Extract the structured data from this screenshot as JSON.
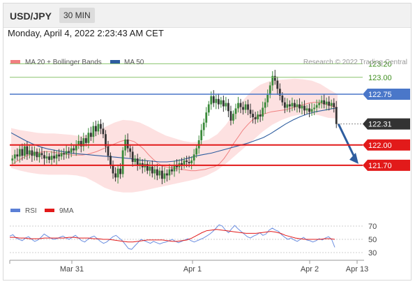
{
  "header": {
    "symbol": "USD/JPY",
    "period": "30 MIN"
  },
  "timestamp": "Monday, April 4, 2022 2:23:43 AM CET",
  "legend": {
    "ma20": "MA 20 + Bollinger Bands",
    "ma50": "MA 50",
    "credit": "Research © 2022 Trading Central"
  },
  "rsi_legend": {
    "rsi": "RSI",
    "ma9": "9MA"
  },
  "colors": {
    "ma20": "#f08080",
    "ma50": "#2e5d9f",
    "band": "#fddcdc",
    "resistance": "#8ac46d",
    "pivot": "#4a77c9",
    "support": "#e21a1a",
    "arrow": "#2e5d9f",
    "candle_up": "#3a8a3a",
    "candle_down": "#333333",
    "current": "#333333"
  },
  "chart_data": [
    {
      "type": "candlestick",
      "ylim": [
        121.35,
        123.25
      ],
      "x_ticks": [
        "Mar 31",
        "Apr 1",
        "Apr 2",
        "Apr 13"
      ],
      "levels": [
        {
          "label": "123.20",
          "value": 123.2,
          "kind": "resistance"
        },
        {
          "label": "123.00",
          "value": 123.0,
          "kind": "resistance"
        },
        {
          "label": "122.75",
          "value": 122.75,
          "kind": "pivot"
        },
        {
          "label": "122.31",
          "value": 122.31,
          "kind": "current"
        },
        {
          "label": "122.00",
          "value": 122.0,
          "kind": "support"
        },
        {
          "label": "121.70",
          "value": 121.7,
          "kind": "support"
        }
      ],
      "close": [
        121.8,
        121.86,
        121.83,
        121.94,
        121.84,
        121.98,
        121.86,
        121.92,
        121.84,
        121.9,
        121.82,
        121.88,
        121.85,
        121.8,
        121.83,
        121.78,
        121.84,
        121.8,
        121.86,
        121.83,
        121.88,
        121.86,
        121.91,
        121.89,
        121.95,
        121.92,
        122.0,
        122.06,
        121.98,
        122.1,
        122.03,
        122.18,
        122.12,
        122.28,
        122.2,
        122.31,
        122.24,
        122.16,
        121.98,
        121.84,
        121.7,
        121.58,
        121.52,
        121.65,
        121.57,
        121.92,
        122.08,
        121.95,
        121.9,
        121.75,
        121.8,
        121.7,
        121.73,
        121.67,
        121.72,
        121.62,
        121.68,
        121.58,
        121.64,
        121.55,
        121.62,
        121.5,
        121.58,
        121.55,
        121.64,
        121.61,
        121.7,
        121.67,
        121.73,
        121.7,
        121.77,
        121.75,
        121.73,
        121.77,
        121.86,
        121.95,
        122.07,
        122.22,
        122.33,
        122.48,
        122.6,
        122.72,
        122.62,
        122.68,
        122.6,
        122.66,
        122.57,
        122.62,
        122.5,
        122.36,
        122.46,
        122.54,
        122.62,
        122.56,
        122.52,
        122.6,
        122.52,
        122.46,
        122.41,
        122.38,
        122.45,
        122.42,
        122.55,
        122.63,
        122.74,
        122.88,
        123.02,
        122.95,
        122.83,
        122.73,
        122.63,
        122.55,
        122.6,
        122.57,
        122.62,
        122.56,
        122.6,
        122.54,
        122.58,
        122.51,
        122.54,
        122.49,
        122.53,
        122.55,
        122.59,
        122.62,
        122.66,
        122.6,
        122.64,
        122.58,
        122.62,
        122.56,
        122.31
      ],
      "ma20": [
        121.7,
        121.75,
        121.79,
        121.83,
        121.86,
        121.88,
        121.89,
        121.9,
        121.9,
        121.89,
        121.88,
        121.87,
        121.86,
        121.85,
        121.85,
        121.85,
        121.86,
        121.88,
        121.9,
        121.93,
        121.96,
        121.99,
        122.02,
        122.05,
        122.07,
        122.07,
        122.05,
        122.0,
        121.94,
        121.86,
        121.79,
        121.73,
        121.69,
        121.67,
        121.66,
        121.65,
        121.64,
        121.63,
        121.62,
        121.62,
        121.63,
        121.64,
        121.66,
        121.68,
        121.72,
        121.8,
        121.9,
        122.02,
        122.12,
        122.22,
        122.3,
        122.37,
        122.42,
        122.45,
        122.47,
        122.49,
        122.5,
        122.51,
        122.52,
        122.54,
        122.56,
        122.58,
        122.6,
        122.62,
        122.63,
        122.63,
        122.61,
        122.59,
        122.57,
        122.55
      ],
      "ma50": [
        122.18,
        122.12,
        122.06,
        122.01,
        121.97,
        121.94,
        121.92,
        121.9,
        121.88,
        121.87,
        121.86,
        121.85,
        121.84,
        121.83,
        121.82,
        121.81,
        121.8,
        121.78,
        121.77,
        121.76,
        121.75,
        121.75,
        121.76,
        121.78,
        121.81,
        121.84,
        121.86,
        121.88,
        121.91,
        121.94,
        121.97,
        122.0,
        122.03,
        122.07,
        122.11,
        122.17,
        122.24,
        122.31,
        122.37,
        122.42,
        122.46,
        122.49,
        122.51,
        122.53,
        122.55
      ],
      "band_upper": [
        122.25,
        122.22,
        122.2,
        122.18,
        122.17,
        122.17,
        122.16,
        122.15,
        122.13,
        122.15,
        122.2,
        122.27,
        122.33,
        122.37,
        122.36,
        122.33,
        122.27,
        122.2,
        122.14,
        122.1,
        122.06,
        122.04,
        122.05,
        122.08,
        122.16,
        122.3,
        122.48,
        122.66,
        122.8,
        122.89,
        122.94,
        122.96,
        122.97,
        122.98,
        122.97,
        122.95,
        122.9,
        122.82,
        122.75
      ],
      "band_lower": [
        121.66,
        121.62,
        121.59,
        121.57,
        121.56,
        121.56,
        121.56,
        121.55,
        121.52,
        121.45,
        121.37,
        121.32,
        121.3,
        121.3,
        121.32,
        121.35,
        121.38,
        121.41,
        121.44,
        121.47,
        121.5,
        121.55,
        121.62,
        121.72,
        121.84,
        121.96,
        122.08,
        122.2,
        122.3,
        122.37,
        122.42,
        122.45,
        122.46,
        122.44,
        122.4,
        122.39
      ]
    },
    {
      "type": "line",
      "ylim": [
        24,
        80
      ],
      "y_ticks": [
        "70",
        "50",
        "30"
      ],
      "rsi": [
        55,
        57,
        52,
        50,
        48,
        52,
        54,
        50,
        47,
        49,
        53,
        58,
        55,
        52,
        50,
        51,
        53,
        55,
        52,
        50,
        53,
        56,
        52,
        48,
        46,
        50,
        53,
        55,
        51,
        47,
        44,
        46,
        50,
        54,
        56,
        52,
        48,
        42,
        36,
        35,
        40,
        45,
        50,
        48,
        46,
        44,
        47,
        45,
        43,
        45,
        46,
        48,
        50,
        47,
        45,
        47,
        49,
        51,
        48,
        46,
        48,
        50,
        52,
        55,
        58,
        62,
        67,
        72,
        70,
        64,
        60,
        66,
        71,
        66,
        62,
        58,
        54,
        52,
        55,
        57,
        60,
        56,
        58,
        64,
        67,
        64,
        62,
        57,
        53,
        50,
        52,
        49,
        47,
        50,
        53,
        49,
        48,
        46,
        48,
        51,
        49,
        52,
        54,
        50,
        38
      ],
      "ma9": [
        53,
        53,
        52,
        52,
        51,
        51,
        51,
        52,
        52,
        52,
        52,
        52,
        53,
        53,
        52,
        52,
        52,
        51,
        51,
        50,
        50,
        49,
        48,
        47,
        46,
        46,
        47,
        48,
        49,
        49,
        49,
        49,
        48,
        47,
        47,
        48,
        49,
        52,
        56,
        60,
        63,
        64,
        65,
        64,
        63,
        62,
        61,
        60,
        59,
        59,
        59,
        60,
        61,
        62,
        61,
        59,
        56,
        54,
        52,
        51,
        50,
        50,
        50,
        50,
        51,
        51,
        50
      ]
    }
  ]
}
